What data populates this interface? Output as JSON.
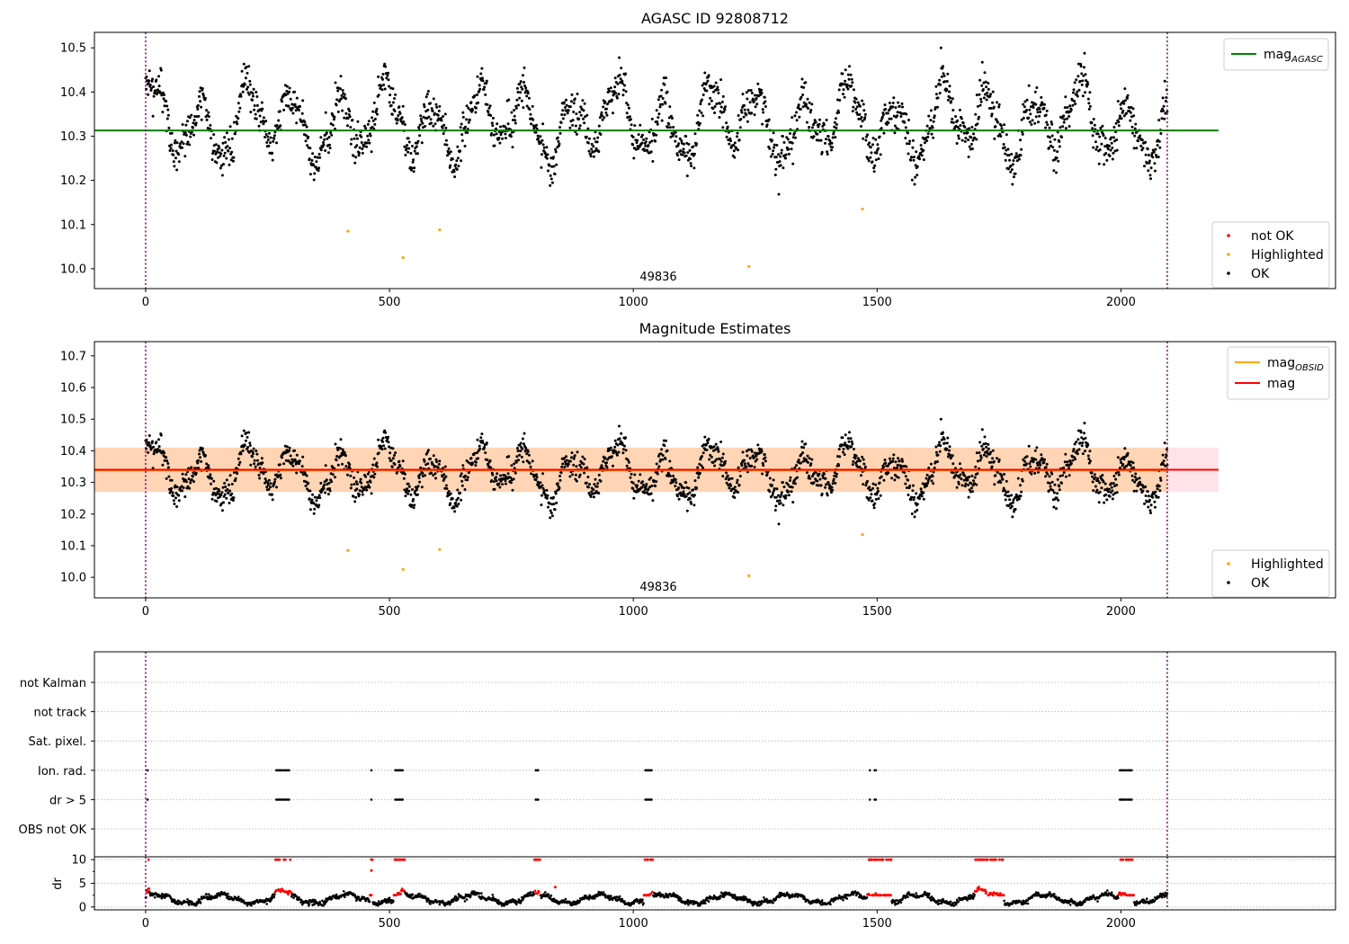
{
  "figure": {
    "panel_top": {
      "title": "AGASC ID 92808712",
      "obsid_label": "49836"
    },
    "panel_middle": {
      "title": "Magnitude Estimates",
      "obsid_label": "49836"
    },
    "legend_top_lines": [
      {
        "main": "mag",
        "sub": "AGASC",
        "color": "#008000"
      }
    ],
    "legend_top_points": [
      {
        "label": "not OK",
        "color": "#ff0000"
      },
      {
        "label": "Highlighted",
        "color": "#ffa500"
      },
      {
        "label": "OK",
        "color": "#000000"
      }
    ],
    "legend_mid_lines": [
      {
        "main": "mag",
        "sub": "OBSID",
        "color": "#ffa500"
      },
      {
        "main": "mag",
        "sub": "",
        "color": "#ff0000"
      }
    ],
    "legend_mid_points": [
      {
        "label": "Highlighted",
        "color": "#ffa500"
      },
      {
        "label": "OK",
        "color": "#000000"
      }
    ]
  },
  "chart_data": [
    {
      "type": "scatter",
      "title": "AGASC ID 92808712",
      "xlim": [
        -105,
        2440
      ],
      "ylim": [
        9.955,
        10.535
      ],
      "xticks": [
        0,
        500,
        1000,
        1500,
        2000
      ],
      "yticks": [
        10.0,
        10.1,
        10.2,
        10.3,
        10.4,
        10.5
      ],
      "hline": {
        "name": "mag_AGASC",
        "y": 10.313,
        "x_range": [
          -105,
          2200
        ],
        "color": "#008000"
      },
      "vlines": [
        0,
        2095
      ],
      "annotation": {
        "text": "49836",
        "x": 1050,
        "y": 9.97
      },
      "series": [
        {
          "name": "not OK",
          "color": "#ff0000",
          "points": []
        },
        {
          "name": "Highlighted",
          "color": "#ffa500",
          "points": [
            [
              415,
              10.085
            ],
            [
              528,
              10.025
            ],
            [
              603,
              10.088
            ],
            [
              1237,
              10.005
            ],
            [
              1470,
              10.135
            ]
          ]
        },
        {
          "name": "OK",
          "color": "#000000",
          "y_range": [
            10.16,
            10.5
          ],
          "x_range": [
            0,
            2095
          ],
          "n_points": 2100,
          "points": []
        }
      ],
      "grid": false,
      "legend": "top-right"
    },
    {
      "type": "scatter",
      "title": "Magnitude Estimates",
      "xlim": [
        -105,
        2440
      ],
      "ylim": [
        9.935,
        10.745
      ],
      "xticks": [
        0,
        500,
        1000,
        1500,
        2000
      ],
      "yticks": [
        10.0,
        10.1,
        10.2,
        10.3,
        10.4,
        10.5,
        10.6,
        10.7
      ],
      "hlines": [
        {
          "name": "mag_OBSID",
          "y": 10.338,
          "x_range": [
            -105,
            2095
          ],
          "color": "#ffa500"
        },
        {
          "name": "mag",
          "y": 10.34,
          "x_range": [
            -105,
            2200
          ],
          "color": "#ff0000"
        }
      ],
      "bands": [
        {
          "y_range": [
            10.27,
            10.41
          ],
          "x_range": [
            -105,
            2200
          ],
          "color": "#ffc0cb"
        },
        {
          "y_range": [
            10.27,
            10.41
          ],
          "x_range": [
            -105,
            2095
          ],
          "color": "#ffa500"
        }
      ],
      "vlines": [
        0,
        2095
      ],
      "annotation": {
        "text": "49836",
        "x": 1050,
        "y": 9.955
      },
      "series": [
        {
          "name": "Highlighted",
          "color": "#ffa500",
          "points": [
            [
              415,
              10.085
            ],
            [
              528,
              10.025
            ],
            [
              603,
              10.088
            ],
            [
              1237,
              10.005
            ],
            [
              1470,
              10.135
            ]
          ]
        },
        {
          "name": "OK",
          "color": "#000000",
          "y_range": [
            10.16,
            10.5
          ],
          "x_range": [
            0,
            2095
          ],
          "n_points": 2100,
          "points": []
        }
      ],
      "grid": false,
      "legend": "top-right"
    },
    {
      "type": "scatter",
      "xlim": [
        -105,
        2440
      ],
      "categories": [
        "not Kalman",
        "not track",
        "Sat. pixel.",
        "Ion. rad.",
        "dr > 5",
        "OBS not OK"
      ],
      "grid": true,
      "vlines": [
        0,
        2095
      ],
      "flag_segments": {
        "Ion. rad.": [
          [
            4,
            4
          ],
          [
            268,
            282
          ],
          [
            284,
            296
          ],
          [
            463,
            463
          ],
          [
            512,
            528
          ],
          [
            800,
            806
          ],
          [
            1025,
            1038
          ],
          [
            1485,
            1487
          ],
          [
            1495,
            1499
          ],
          [
            1998,
            2010
          ],
          [
            2012,
            2024
          ]
        ],
        "dr > 5": [
          [
            4,
            4
          ],
          [
            268,
            282
          ],
          [
            284,
            296
          ],
          [
            463,
            463
          ],
          [
            512,
            528
          ],
          [
            800,
            806
          ],
          [
            1025,
            1038
          ],
          [
            1485,
            1487
          ],
          [
            1495,
            1499
          ],
          [
            1998,
            2010
          ],
          [
            2012,
            2024
          ]
        ]
      }
    },
    {
      "type": "scatter",
      "ylabel": "dr",
      "xlim": [
        -105,
        2440
      ],
      "ylim": [
        -0.6,
        10.6
      ],
      "xticks": [
        0,
        500,
        1000,
        1500,
        2000
      ],
      "yticks": [
        0,
        5,
        10
      ],
      "grid": true,
      "vlines": [
        0,
        2095
      ],
      "series": [
        {
          "name": "OK",
          "color": "#000000",
          "y_range": [
            0.3,
            3.5
          ],
          "n_points": 2100,
          "points": []
        },
        {
          "name": "not OK",
          "color": "#ff0000",
          "y_range": [
            2.5,
            10.0
          ],
          "points": [
            [
              463,
              7.7
            ],
            [
              463,
              10.0
            ],
            [
              840,
              4.2
            ]
          ]
        }
      ]
    }
  ]
}
